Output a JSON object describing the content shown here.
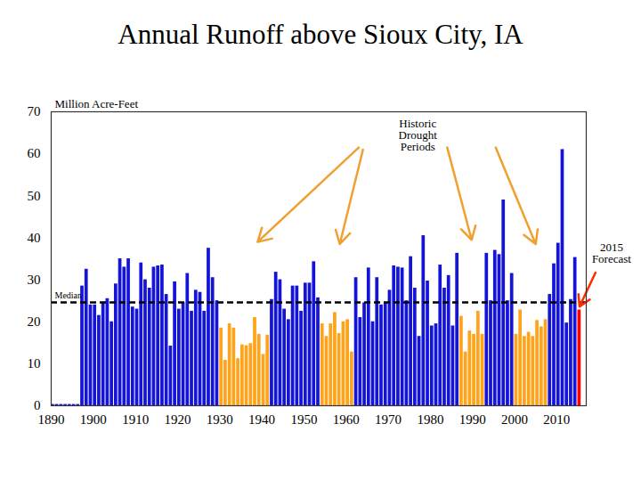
{
  "chart_data": {
    "type": "bar",
    "title": "Annual Runoff above Sioux City, IA",
    "y_label": "Million Acre-Feet",
    "x": [
      1890,
      1891,
      1892,
      1893,
      1894,
      1895,
      1896,
      1897,
      1898,
      1899,
      1900,
      1901,
      1902,
      1903,
      1904,
      1905,
      1906,
      1907,
      1908,
      1909,
      1910,
      1911,
      1912,
      1913,
      1914,
      1915,
      1916,
      1917,
      1918,
      1919,
      1920,
      1921,
      1922,
      1923,
      1924,
      1925,
      1926,
      1927,
      1928,
      1929,
      1930,
      1931,
      1932,
      1933,
      1934,
      1935,
      1936,
      1937,
      1938,
      1939,
      1940,
      1941,
      1942,
      1943,
      1944,
      1945,
      1946,
      1947,
      1948,
      1949,
      1950,
      1951,
      1952,
      1953,
      1954,
      1955,
      1956,
      1957,
      1958,
      1959,
      1960,
      1961,
      1962,
      1963,
      1964,
      1965,
      1966,
      1967,
      1968,
      1969,
      1970,
      1971,
      1972,
      1973,
      1974,
      1975,
      1976,
      1977,
      1978,
      1979,
      1980,
      1981,
      1982,
      1983,
      1984,
      1985,
      1986,
      1987,
      1988,
      1989,
      1990,
      1991,
      1992,
      1993,
      1994,
      1995,
      1996,
      1997,
      1998,
      1999,
      2000,
      2001,
      2002,
      2003,
      2004,
      2005,
      2006,
      2007,
      2008,
      2009,
      2010,
      2011,
      2012,
      2013,
      2014,
      2015
    ],
    "values": [
      0.3,
      0.3,
      0.3,
      0.3,
      0.3,
      0.3,
      0.3,
      28.5,
      32.5,
      24,
      24,
      21.5,
      24.5,
      25.5,
      20,
      29,
      35,
      33,
      35,
      23.5,
      23,
      34,
      30,
      28,
      33,
      33.3,
      33.5,
      26.5,
      14.2,
      29.5,
      23,
      24.5,
      31.5,
      22.5,
      27.5,
      27,
      22.5,
      37.5,
      30.5,
      25,
      18.5,
      10.8,
      19.5,
      18.5,
      11.2,
      14.5,
      14.3,
      14.8,
      21,
      17,
      12.2,
      16.8,
      25.3,
      31.8,
      30,
      23,
      20.5,
      28.5,
      28.5,
      22.5,
      29.2,
      29.2,
      34.3,
      25.7,
      19.5,
      16.5,
      19.5,
      22.2,
      17.2,
      20,
      20.5,
      12.8,
      30.5,
      21,
      24.5,
      32.8,
      20,
      30.5,
      24,
      24.5,
      27.5,
      33.3,
      33,
      32.8,
      25,
      35.5,
      28,
      16.5,
      40.5,
      29.7,
      19,
      19.5,
      33.5,
      28,
      31,
      19,
      36.3,
      21.3,
      12.8,
      17.8,
      17,
      22.5,
      17,
      36.3,
      25,
      37,
      36,
      49,
      25,
      31.5,
      17,
      22.8,
      16.5,
      17.5,
      16.5,
      20.3,
      18.8,
      20.5,
      26.5,
      33.8,
      38.7,
      61,
      19.7,
      25.3,
      35.3,
      22.8
    ],
    "colors": [
      "#1414d9",
      "#1414d9",
      "#1414d9",
      "#1414d9",
      "#1414d9",
      "#1414d9",
      "#1414d9",
      "#1414d9",
      "#1414d9",
      "#1414d9",
      "#1414d9",
      "#1414d9",
      "#1414d9",
      "#1414d9",
      "#1414d9",
      "#1414d9",
      "#1414d9",
      "#1414d9",
      "#1414d9",
      "#1414d9",
      "#1414d9",
      "#1414d9",
      "#1414d9",
      "#1414d9",
      "#1414d9",
      "#1414d9",
      "#1414d9",
      "#1414d9",
      "#1414d9",
      "#1414d9",
      "#1414d9",
      "#1414d9",
      "#1414d9",
      "#1414d9",
      "#1414d9",
      "#1414d9",
      "#1414d9",
      "#1414d9",
      "#1414d9",
      "#1414d9",
      "#ffa31a",
      "#ffa31a",
      "#ffa31a",
      "#ffa31a",
      "#ffa31a",
      "#ffa31a",
      "#ffa31a",
      "#ffa31a",
      "#ffa31a",
      "#ffa31a",
      "#ffa31a",
      "#ffa31a",
      "#1414d9",
      "#1414d9",
      "#1414d9",
      "#1414d9",
      "#1414d9",
      "#1414d9",
      "#1414d9",
      "#1414d9",
      "#1414d9",
      "#1414d9",
      "#1414d9",
      "#1414d9",
      "#ffa31a",
      "#ffa31a",
      "#ffa31a",
      "#ffa31a",
      "#ffa31a",
      "#ffa31a",
      "#ffa31a",
      "#ffa31a",
      "#1414d9",
      "#1414d9",
      "#1414d9",
      "#1414d9",
      "#1414d9",
      "#1414d9",
      "#1414d9",
      "#1414d9",
      "#1414d9",
      "#1414d9",
      "#1414d9",
      "#1414d9",
      "#1414d9",
      "#1414d9",
      "#1414d9",
      "#1414d9",
      "#1414d9",
      "#1414d9",
      "#1414d9",
      "#1414d9",
      "#1414d9",
      "#1414d9",
      "#1414d9",
      "#1414d9",
      "#1414d9",
      "#ffa31a",
      "#ffa31a",
      "#ffa31a",
      "#ffa31a",
      "#ffa31a",
      "#ffa31a",
      "#1414d9",
      "#1414d9",
      "#1414d9",
      "#1414d9",
      "#1414d9",
      "#1414d9",
      "#1414d9",
      "#ffa31a",
      "#ffa31a",
      "#ffa31a",
      "#ffa31a",
      "#ffa31a",
      "#ffa31a",
      "#ffa31a",
      "#ffa31a",
      "#1414d9",
      "#1414d9",
      "#1414d9",
      "#1414d9",
      "#1414d9",
      "#1414d9",
      "#1414d9",
      "#ff0000"
    ],
    "xlim": [
      1890,
      2017
    ],
    "xticks": [
      1890,
      1900,
      1910,
      1920,
      1930,
      1940,
      1950,
      1960,
      1970,
      1980,
      1990,
      2000,
      2010
    ],
    "ylim": [
      0,
      70
    ],
    "yticks": [
      0,
      10,
      20,
      30,
      40,
      50,
      60,
      70
    ],
    "grid": false,
    "median": {
      "value": 24.6,
      "label": "Median"
    },
    "annotations": [
      {
        "text": "Historic Drought Periods",
        "x": 1977,
        "y": 64.5,
        "color": "#f0a030",
        "arrows": [
          {
            "x1": 1963,
            "y1": 61.5,
            "x2": 1939,
            "y2": 39
          },
          {
            "x1": 1964,
            "y1": 61,
            "x2": 1958.5,
            "y2": 38.5
          },
          {
            "x1": 1984,
            "y1": 61.5,
            "x2": 1989.8,
            "y2": 39.5
          },
          {
            "x1": 1995.5,
            "y1": 61.5,
            "x2": 2005,
            "y2": 38.5
          }
        ]
      },
      {
        "text": "2015 Forecast",
        "x": 2023,
        "y": 36.4,
        "color": "#ff2a00",
        "arrows": [
          {
            "x1": 2019.2,
            "y1": 31.7,
            "x2": 2015.4,
            "y2": 23.6
          }
        ]
      }
    ]
  }
}
